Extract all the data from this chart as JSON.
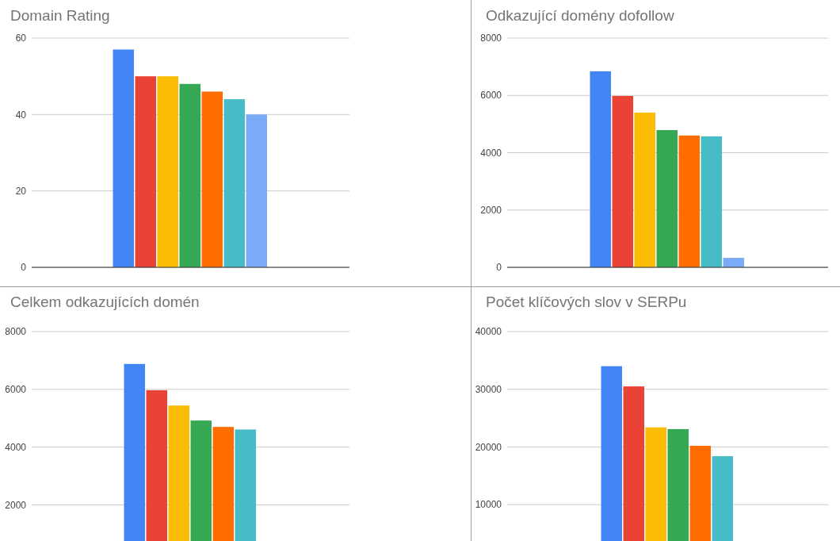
{
  "chart_data": [
    {
      "type": "bar",
      "title": "Domain Rating",
      "categories": [
        null
      ],
      "ylim": [
        0,
        60
      ],
      "yticks": [
        0,
        20,
        40,
        60
      ],
      "grid": "y",
      "series": [
        {
          "color": "#4285f4",
          "values": [
            57
          ]
        },
        {
          "color": "#ea4335",
          "values": [
            50
          ]
        },
        {
          "color": "#fbbc04",
          "values": [
            50
          ]
        },
        {
          "color": "#34a853",
          "values": [
            48
          ]
        },
        {
          "color": "#ff6d01",
          "values": [
            46
          ]
        },
        {
          "color": "#46bdc6",
          "values": [
            44
          ]
        },
        {
          "color": "#7baaf7",
          "values": [
            40
          ]
        }
      ]
    },
    {
      "type": "bar",
      "title": "Odkazující domény dofollow",
      "categories": [
        null
      ],
      "ylim": [
        0,
        8000
      ],
      "yticks": [
        0,
        2000,
        4000,
        6000,
        8000
      ],
      "grid": "y",
      "series": [
        {
          "color": "#4285f4",
          "values": [
            6840
          ]
        },
        {
          "color": "#ea4335",
          "values": [
            5980
          ]
        },
        {
          "color": "#fbbc04",
          "values": [
            5400
          ]
        },
        {
          "color": "#34a853",
          "values": [
            4790
          ]
        },
        {
          "color": "#ff6d01",
          "values": [
            4600
          ]
        },
        {
          "color": "#46bdc6",
          "values": [
            4570
          ]
        },
        {
          "color": "#7baaf7",
          "values": [
            330
          ]
        }
      ]
    },
    {
      "type": "bar",
      "title": "Celkem odkazujících domén",
      "categories": [
        null
      ],
      "ylim": [
        750,
        8000
      ],
      "yticks": [
        2000,
        4000,
        6000,
        8000
      ],
      "grid": "y",
      "series": [
        {
          "color": "#4285f4",
          "values": [
            6880
          ]
        },
        {
          "color": "#ea4335",
          "values": [
            5970
          ]
        },
        {
          "color": "#fbbc04",
          "values": [
            5440
          ]
        },
        {
          "color": "#34a853",
          "values": [
            4920
          ]
        },
        {
          "color": "#ff6d01",
          "values": [
            4700
          ]
        },
        {
          "color": "#46bdc6",
          "values": [
            4610
          ]
        }
      ]
    },
    {
      "type": "bar",
      "title": "Počet klíčových slov v SERPu",
      "categories": [
        null
      ],
      "ylim": [
        3700,
        40000
      ],
      "yticks": [
        10000,
        20000,
        30000,
        40000
      ],
      "grid": "y",
      "series": [
        {
          "color": "#4285f4",
          "values": [
            34000
          ]
        },
        {
          "color": "#ea4335",
          "values": [
            30500
          ]
        },
        {
          "color": "#fbbc04",
          "values": [
            23400
          ]
        },
        {
          "color": "#34a853",
          "values": [
            23100
          ]
        },
        {
          "color": "#ff6d01",
          "values": [
            20200
          ]
        },
        {
          "color": "#46bdc6",
          "values": [
            18400
          ]
        }
      ]
    }
  ]
}
